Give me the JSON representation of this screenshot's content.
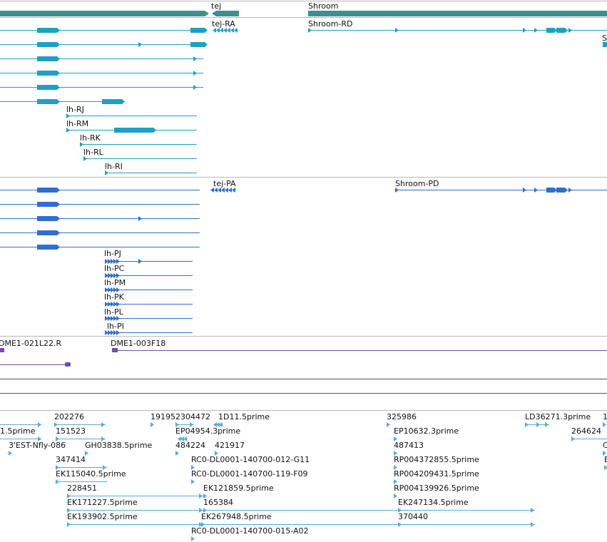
{
  "colors": {
    "gene_band": "#3f8f8f",
    "transcript": "#1ea0c4",
    "protein": "#2f6fd0",
    "clone": "#6f4fa8",
    "est": "#5aaae0",
    "separator": "#b8b8b8"
  },
  "gene_track": {
    "genes": [
      {
        "id": "g-tej",
        "label": "tej"
      },
      {
        "id": "g-shroom",
        "label": "Shroom"
      }
    ]
  },
  "transcript_track": {
    "labels": [
      {
        "id": "t-tej-ra",
        "text": "tej-RA"
      },
      {
        "id": "t-shroom-rd",
        "text": "Shroom-RD"
      },
      {
        "id": "t-lh-rj",
        "text": "lh-RJ"
      },
      {
        "id": "t-lh-rm",
        "text": "lh-RM"
      },
      {
        "id": "t-lh-rk",
        "text": "lh-RK"
      },
      {
        "id": "t-lh-rl",
        "text": "lh-RL"
      },
      {
        "id": "t-lh-ri",
        "text": "lh-RI"
      },
      {
        "id": "t-edge-s",
        "text": "S"
      }
    ]
  },
  "protein_track": {
    "labels": [
      {
        "id": "p-tej-pa",
        "text": "tej-PA"
      },
      {
        "id": "p-shroom-pd",
        "text": "Shroom-PD"
      },
      {
        "id": "p-lh-pj",
        "text": "lh-PJ"
      },
      {
        "id": "p-lh-pc",
        "text": "lh-PC"
      },
      {
        "id": "p-lh-pm",
        "text": "lh-PM"
      },
      {
        "id": "p-lh-pk",
        "text": "lh-PK"
      },
      {
        "id": "p-lh-pl",
        "text": "lh-PL"
      },
      {
        "id": "p-lh-pi",
        "text": "lh-PI"
      }
    ]
  },
  "clone_track": {
    "labels": [
      {
        "id": "c-021l22",
        "text": "DME1-021L22.R"
      },
      {
        "id": "c-003f18",
        "text": "DME1-003F18"
      }
    ]
  },
  "est_track": {
    "labels": [
      {
        "id": "e-202276",
        "text": "202276"
      },
      {
        "id": "e-191952",
        "text": "191952304472"
      },
      {
        "id": "e-1d11",
        "text": "1D11.5prime"
      },
      {
        "id": "e-325986",
        "text": "325986"
      },
      {
        "id": "e-ld36271",
        "text": "LD36271.3prime"
      },
      {
        "id": "e-edge-1",
        "text": "1"
      },
      {
        "id": "e-1-5prime",
        "text": "1.5prime"
      },
      {
        "id": "e-151523",
        "text": "151523"
      },
      {
        "id": "e-ep04954",
        "text": "EP04954.3prime"
      },
      {
        "id": "e-ep10632",
        "text": "EP10632.3prime"
      },
      {
        "id": "e-264624",
        "text": "264624"
      },
      {
        "id": "e-3est",
        "text": "3'EST-Nfly-086"
      },
      {
        "id": "e-gh03838",
        "text": "GH03838.5prime"
      },
      {
        "id": "e-484224",
        "text": "484224"
      },
      {
        "id": "e-421917",
        "text": "421917"
      },
      {
        "id": "e-487413",
        "text": "487413"
      },
      {
        "id": "e-edge-c",
        "text": "C"
      },
      {
        "id": "e-347414",
        "text": "347414"
      },
      {
        "id": "e-rc0-012",
        "text": "RC0-DL0001-140700-012-G11"
      },
      {
        "id": "e-rp004372855",
        "text": "RP004372855.5prime"
      },
      {
        "id": "e-edge-e",
        "text": "E"
      },
      {
        "id": "e-ek115040",
        "text": "EK115040.5prime"
      },
      {
        "id": "e-rc0-119",
        "text": "RC0-DL0001-140700-119-F09"
      },
      {
        "id": "e-rp004209431",
        "text": "RP004209431.5prime"
      },
      {
        "id": "e-228451",
        "text": "228451"
      },
      {
        "id": "e-ek121859",
        "text": "EK121859.5prime"
      },
      {
        "id": "e-rp004139926",
        "text": "RP004139926.5prime"
      },
      {
        "id": "e-ek171227",
        "text": "EK171227.5prime"
      },
      {
        "id": "e-165384",
        "text": "165384"
      },
      {
        "id": "e-ek247134",
        "text": "EK247134.5prime"
      },
      {
        "id": "e-ek193902",
        "text": "EK193902.5prime"
      },
      {
        "id": "e-ek267948",
        "text": "EK267948.5prime"
      },
      {
        "id": "e-370440",
        "text": "370440"
      },
      {
        "id": "e-rc0-015",
        "text": "RC0-DL0001-140700-015-A02"
      }
    ]
  }
}
